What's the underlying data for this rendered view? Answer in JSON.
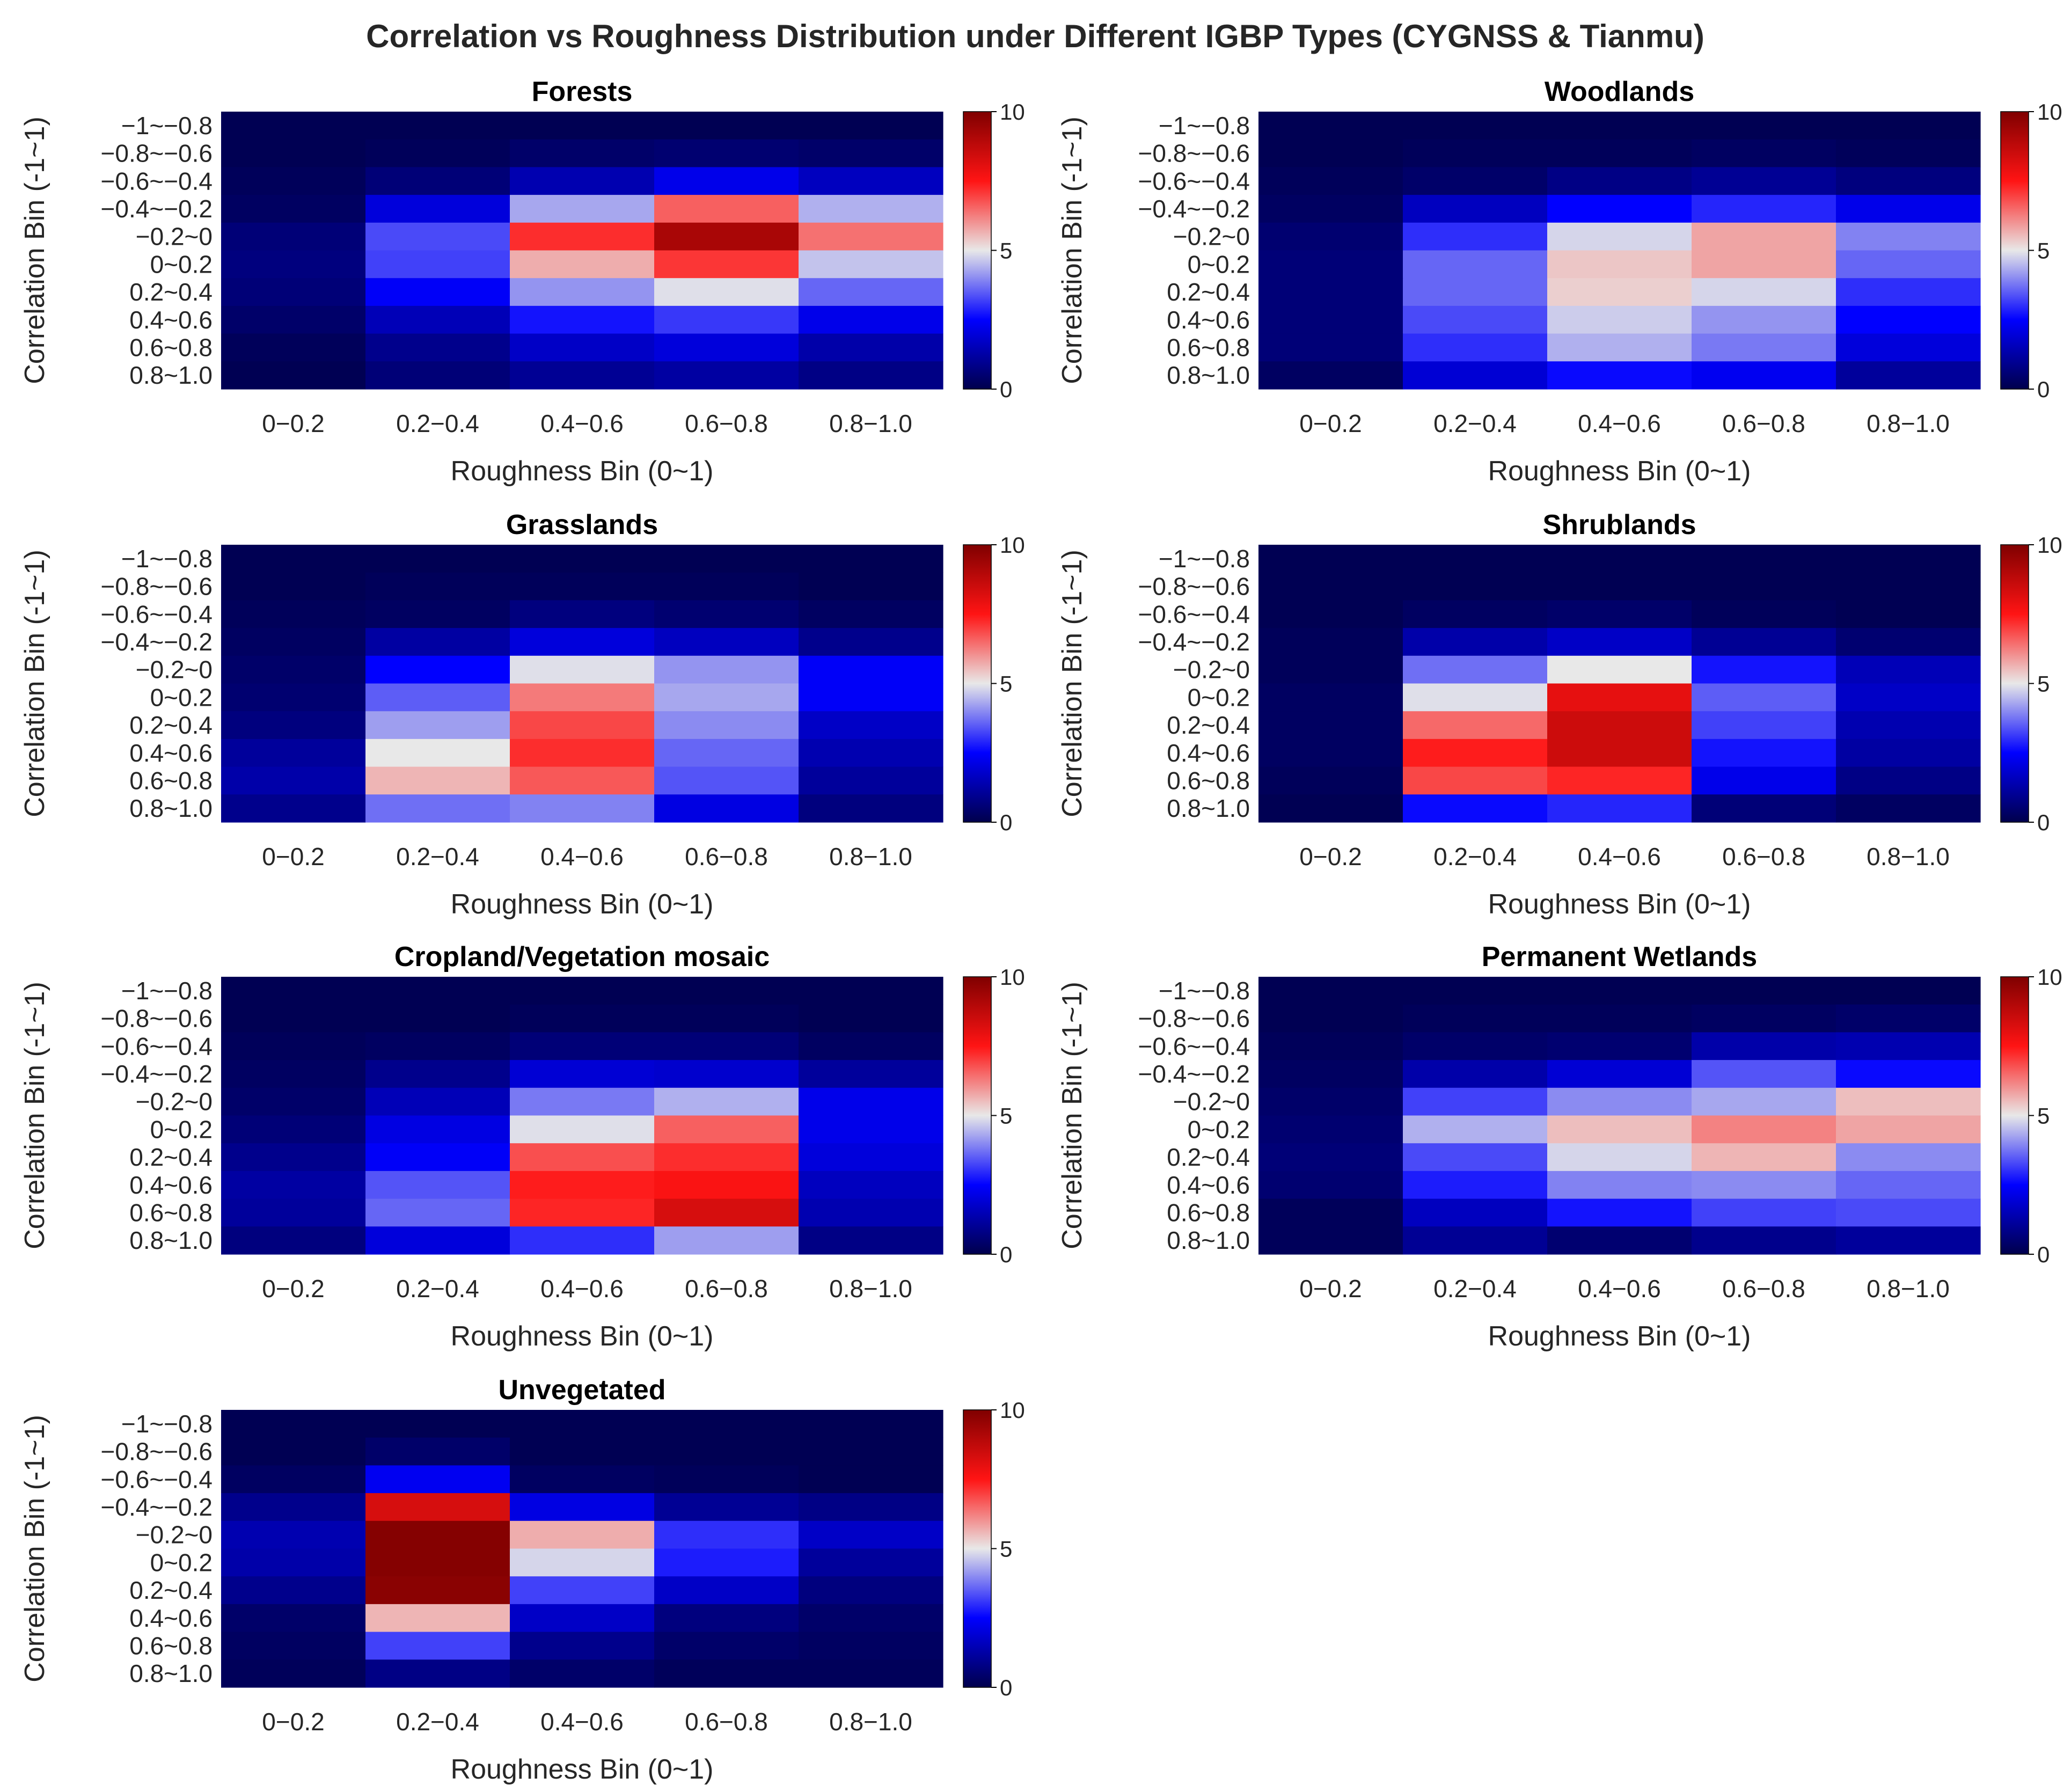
{
  "title": "Correlation vs Roughness Distribution under Different IGBP Types (CYGNSS & Tianmu)",
  "chart_data": {
    "type": "heatmap",
    "xlabel": "Roughness Bin (0~1)",
    "ylabel": "Correlation Bin (-1~1)",
    "x_categories": [
      "0−0.2",
      "0.2−0.4",
      "0.4−0.6",
      "0.6−0.8",
      "0.8−1.0"
    ],
    "y_categories": [
      "−1~−0.8",
      "−0.8~−0.6",
      "−0.6~−0.4",
      "−0.4~−0.2",
      "−0.2~0",
      "0~0.2",
      "0.2~0.4",
      "0.4~0.6",
      "0.6~0.8",
      "0.8~1.0"
    ],
    "colorbar": {
      "min": 0,
      "max": 10,
      "ticks": [
        "0",
        "5",
        "10"
      ],
      "colormap": "seismic"
    },
    "panels": [
      {
        "title": "Forests",
        "values": [
          [
            0.1,
            0.1,
            0.1,
            0.1,
            0.1
          ],
          [
            0.1,
            0.2,
            0.4,
            0.5,
            0.4
          ],
          [
            0.2,
            0.6,
            1.4,
            2.2,
            1.6
          ],
          [
            0.3,
            2.0,
            4.3,
            6.6,
            4.4
          ],
          [
            0.6,
            3.3,
            7.2,
            9.2,
            6.4
          ],
          [
            0.7,
            3.2,
            5.7,
            7.1,
            4.6
          ],
          [
            0.6,
            2.4,
            4.1,
            4.9,
            3.6
          ],
          [
            0.4,
            1.5,
            2.7,
            3.1,
            2.2
          ],
          [
            0.2,
            0.9,
            1.7,
            2.0,
            1.3
          ],
          [
            0.1,
            0.6,
            1.0,
            1.2,
            0.8
          ]
        ]
      },
      {
        "title": "Woodlands",
        "values": [
          [
            0.1,
            0.1,
            0.1,
            0.1,
            0.1
          ],
          [
            0.1,
            0.2,
            0.2,
            0.3,
            0.2
          ],
          [
            0.2,
            0.4,
            0.8,
            1.0,
            0.7
          ],
          [
            0.3,
            1.6,
            2.5,
            2.9,
            2.2
          ],
          [
            0.5,
            3.0,
            4.8,
            5.8,
            3.9
          ],
          [
            0.6,
            3.6,
            5.4,
            5.8,
            3.6
          ],
          [
            0.6,
            3.6,
            5.3,
            4.8,
            3.0
          ],
          [
            0.6,
            3.3,
            4.7,
            4.1,
            2.5
          ],
          [
            0.6,
            3.0,
            4.4,
            3.8,
            2.0
          ],
          [
            0.3,
            1.9,
            2.6,
            2.3,
            1.1
          ]
        ]
      },
      {
        "title": "Grasslands",
        "values": [
          [
            0.1,
            0.1,
            0.1,
            0.1,
            0.1
          ],
          [
            0.1,
            0.2,
            0.2,
            0.2,
            0.1
          ],
          [
            0.2,
            0.3,
            0.7,
            0.5,
            0.3
          ],
          [
            0.3,
            1.2,
            2.0,
            1.6,
            0.9
          ],
          [
            0.4,
            2.5,
            4.9,
            4.1,
            2.4
          ],
          [
            0.5,
            3.5,
            6.3,
            4.3,
            2.4
          ],
          [
            0.7,
            4.2,
            6.9,
            4.0,
            1.7
          ],
          [
            1.1,
            5.0,
            7.2,
            3.6,
            1.4
          ],
          [
            1.3,
            5.6,
            6.7,
            3.4,
            1.1
          ],
          [
            0.9,
            3.7,
            3.9,
            2.1,
            0.7
          ]
        ]
      },
      {
        "title": "Shrublands",
        "values": [
          [
            0.1,
            0.1,
            0.1,
            0.1,
            0.1
          ],
          [
            0.1,
            0.1,
            0.1,
            0.1,
            0.1
          ],
          [
            0.1,
            0.3,
            0.4,
            0.2,
            0.1
          ],
          [
            0.2,
            1.3,
            1.7,
            1.0,
            0.5
          ],
          [
            0.2,
            3.7,
            5.0,
            2.7,
            1.5
          ],
          [
            0.3,
            4.9,
            8.0,
            3.5,
            1.7
          ],
          [
            0.3,
            6.5,
            8.5,
            3.2,
            1.4
          ],
          [
            0.3,
            7.4,
            8.5,
            2.7,
            1.2
          ],
          [
            0.2,
            6.9,
            7.3,
            2.2,
            0.8
          ],
          [
            0.1,
            2.6,
            2.9,
            0.6,
            0.3
          ]
        ]
      },
      {
        "title": "Cropland/Vegetation mosaic",
        "values": [
          [
            0.1,
            0.1,
            0.1,
            0.1,
            0.1
          ],
          [
            0.1,
            0.1,
            0.2,
            0.2,
            0.1
          ],
          [
            0.2,
            0.3,
            0.6,
            0.6,
            0.3
          ],
          [
            0.3,
            0.9,
            1.9,
            1.8,
            1.1
          ],
          [
            0.4,
            1.5,
            3.8,
            4.4,
            2.2
          ],
          [
            0.6,
            2.1,
            4.9,
            6.6,
            2.2
          ],
          [
            0.9,
            2.4,
            6.8,
            7.2,
            2.0
          ],
          [
            1.2,
            3.4,
            7.4,
            7.6,
            1.6
          ],
          [
            1.1,
            3.6,
            7.3,
            8.3,
            1.4
          ],
          [
            0.7,
            2.0,
            3.0,
            4.2,
            0.8
          ]
        ]
      },
      {
        "title": "Permanent Wetlands",
        "values": [
          [
            0.1,
            0.1,
            0.1,
            0.1,
            0.1
          ],
          [
            0.1,
            0.2,
            0.2,
            0.3,
            0.4
          ],
          [
            0.2,
            0.4,
            0.5,
            1.3,
            1.4
          ],
          [
            0.3,
            1.3,
            1.9,
            3.4,
            2.6
          ],
          [
            0.4,
            3.2,
            4.0,
            4.3,
            5.5
          ],
          [
            0.5,
            4.4,
            5.5,
            6.2,
            5.8
          ],
          [
            0.6,
            3.3,
            4.8,
            5.6,
            4.0
          ],
          [
            0.5,
            2.8,
            3.9,
            4.0,
            3.6
          ],
          [
            0.2,
            1.6,
            2.7,
            3.2,
            3.3
          ],
          [
            0.2,
            1.0,
            0.5,
            0.9,
            1.1
          ]
        ]
      },
      {
        "title": "Unvegetated",
        "values": [
          [
            0.1,
            0.1,
            0.1,
            0.1,
            0.1
          ],
          [
            0.1,
            0.4,
            0.1,
            0.1,
            0.1
          ],
          [
            0.3,
            2.3,
            0.3,
            0.2,
            0.1
          ],
          [
            0.9,
            8.3,
            2.1,
            1.0,
            0.8
          ],
          [
            1.4,
            9.9,
            5.7,
            3.0,
            1.7
          ],
          [
            1.3,
            9.9,
            4.8,
            2.8,
            1.1
          ],
          [
            0.9,
            9.8,
            3.2,
            1.7,
            0.7
          ],
          [
            0.4,
            5.6,
            1.7,
            0.7,
            0.4
          ],
          [
            0.3,
            3.2,
            0.9,
            0.4,
            0.3
          ],
          [
            0.2,
            0.8,
            0.4,
            0.2,
            0.2
          ]
        ]
      }
    ]
  }
}
